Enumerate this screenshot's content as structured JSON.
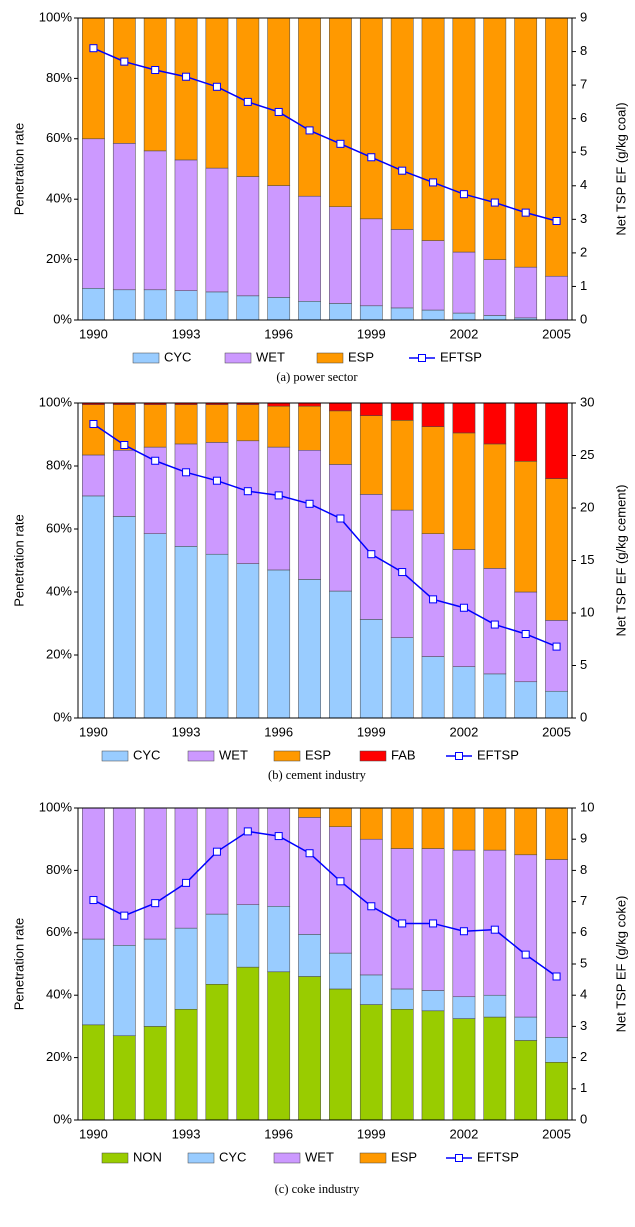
{
  "chart_data": [
    {
      "type": "bar",
      "stacked": true,
      "caption": "(a) power sector",
      "y_label": "Penetration rate",
      "y2_label": "Net TSP EF (g/kg coal)",
      "categories": [
        "1990",
        null,
        null,
        "1993",
        null,
        null,
        "1996",
        null,
        null,
        "1999",
        null,
        null,
        "2002",
        null,
        null,
        "2005"
      ],
      "ylim": [
        0,
        100
      ],
      "yticks": [
        {
          "value": 0,
          "label": "0%"
        },
        {
          "value": 20,
          "label": "20%"
        },
        {
          "value": 40,
          "label": "40%"
        },
        {
          "value": 60,
          "label": "60%"
        },
        {
          "value": 80,
          "label": "80%"
        },
        {
          "value": 100,
          "label": "100%"
        }
      ],
      "y2lim": [
        0,
        9
      ],
      "y2ticks": [
        0,
        1,
        2,
        3,
        4,
        5,
        6,
        7,
        8,
        9
      ],
      "legend": "bottom",
      "series": [
        {
          "name": "CYC",
          "color": "#99ccff",
          "values": [
            10.5,
            10,
            10,
            9.7,
            9.3,
            8,
            7.5,
            6.2,
            5.5,
            4.7,
            4,
            3.3,
            2.3,
            1.5,
            0.7,
            0
          ]
        },
        {
          "name": "WET",
          "color": "#cc99ff",
          "values": [
            49.5,
            48.5,
            46,
            43.3,
            41,
            39.5,
            37,
            34.8,
            32,
            28.8,
            26,
            23,
            20.2,
            18.5,
            16.8,
            14.5
          ]
        },
        {
          "name": "ESP",
          "color": "#ff9900",
          "values": [
            40,
            41.5,
            44,
            47,
            49.7,
            52.5,
            55.5,
            59,
            62.5,
            66.5,
            70,
            73.7,
            77.5,
            80,
            82.5,
            85.5
          ]
        },
        {
          "name": "EFTSP",
          "type": "line",
          "axis": "y2",
          "color": "#0000ff",
          "values": [
            8.1,
            7.7,
            7.45,
            7.25,
            6.95,
            6.5,
            6.2,
            5.65,
            5.25,
            4.85,
            4.45,
            4.1,
            3.75,
            3.5,
            3.2,
            2.95
          ]
        }
      ]
    },
    {
      "type": "bar",
      "stacked": true,
      "caption": "(b) cement industry",
      "y_label": "Penetration rate",
      "y2_label": "Net TSP EF (g/kg cement)",
      "categories": [
        "1990",
        null,
        null,
        "1993",
        null,
        null,
        "1996",
        null,
        null,
        "1999",
        null,
        null,
        "2002",
        null,
        null,
        "2005"
      ],
      "ylim": [
        0,
        100
      ],
      "yticks": [
        {
          "value": 0,
          "label": "0%"
        },
        {
          "value": 20,
          "label": "20%"
        },
        {
          "value": 40,
          "label": "40%"
        },
        {
          "value": 60,
          "label": "60%"
        },
        {
          "value": 80,
          "label": "80%"
        },
        {
          "value": 100,
          "label": "100%"
        }
      ],
      "y2lim": [
        0,
        30
      ],
      "y2ticks": [
        0,
        5,
        10,
        15,
        20,
        25,
        30
      ],
      "legend": "bottom",
      "series": [
        {
          "name": "CYC",
          "color": "#99ccff",
          "values": [
            70.5,
            64,
            58.5,
            54.5,
            52,
            49,
            47,
            44,
            40.3,
            31.3,
            25.5,
            19.5,
            16.3,
            14,
            11.5,
            8.5
          ]
        },
        {
          "name": "WET",
          "color": "#cc99ff",
          "values": [
            13,
            21,
            27.5,
            32.5,
            35.5,
            39,
            39,
            41,
            40.2,
            39.7,
            40.5,
            39,
            37.2,
            33.5,
            28.5,
            22.5
          ]
        },
        {
          "name": "ESP",
          "color": "#ff9900",
          "values": [
            16,
            14.5,
            13.5,
            12.5,
            12,
            11.5,
            13,
            14,
            17,
            25,
            28.5,
            34,
            37,
            39.5,
            41.5,
            45
          ]
        },
        {
          "name": "FAB",
          "color": "#ff0000",
          "values": [
            0.5,
            0.5,
            0.5,
            0.5,
            0.5,
            0.5,
            1,
            1,
            2.5,
            4,
            5.5,
            7.5,
            9.5,
            13,
            18.5,
            24
          ]
        },
        {
          "name": "EFTSP",
          "type": "line",
          "axis": "y2",
          "color": "#0000ff",
          "values": [
            28,
            26,
            24.5,
            23.4,
            22.6,
            21.6,
            21.2,
            20.4,
            19,
            15.6,
            13.9,
            11.3,
            10.5,
            8.9,
            8,
            6.8
          ]
        }
      ]
    },
    {
      "type": "bar",
      "stacked": true,
      "caption": "(c) coke industry",
      "y_label": "Penetration rate",
      "y2_label": "Net TSP EF (g/kg coke)",
      "categories": [
        "1990",
        null,
        null,
        "1993",
        null,
        null,
        "1996",
        null,
        null,
        "1999",
        null,
        null,
        "2002",
        null,
        null,
        "2005"
      ],
      "ylim": [
        0,
        100
      ],
      "yticks": [
        {
          "value": 0,
          "label": "0%"
        },
        {
          "value": 20,
          "label": "20%"
        },
        {
          "value": 40,
          "label": "40%"
        },
        {
          "value": 60,
          "label": "60%"
        },
        {
          "value": 80,
          "label": "80%"
        },
        {
          "value": 100,
          "label": "100%"
        }
      ],
      "y2lim": [
        0,
        10
      ],
      "y2ticks": [
        0,
        1,
        2,
        3,
        4,
        5,
        6,
        7,
        8,
        9,
        10
      ],
      "legend": "bottom",
      "series": [
        {
          "name": "NON",
          "color": "#99cc00",
          "values": [
            30.5,
            27,
            30,
            35.5,
            43.5,
            49,
            47.5,
            46,
            42,
            37,
            35.5,
            35,
            32.5,
            33,
            25.5,
            18.5
          ]
        },
        {
          "name": "CYC",
          "color": "#99ccff",
          "values": [
            27.5,
            29,
            28,
            26,
            22.5,
            20,
            21,
            13.5,
            11.5,
            9.5,
            6.5,
            6.5,
            7,
            7,
            7.5,
            8
          ]
        },
        {
          "name": "WET",
          "color": "#cc99ff",
          "values": [
            42,
            44,
            42,
            38.5,
            34,
            31,
            31.5,
            37.5,
            40.5,
            43.5,
            45,
            45.5,
            47,
            46.5,
            52,
            57
          ]
        },
        {
          "name": "ESP",
          "color": "#ff9900",
          "values": [
            0,
            0,
            0,
            0,
            0,
            0,
            0,
            3,
            6,
            10,
            13,
            13,
            13.5,
            13.5,
            15,
            16.5
          ]
        },
        {
          "name": "EFTSP",
          "type": "line",
          "axis": "y2",
          "color": "#0000ff",
          "values": [
            7.05,
            6.55,
            6.95,
            7.6,
            8.6,
            9.25,
            9.1,
            8.55,
            7.65,
            6.85,
            6.3,
            6.3,
            6.05,
            6.1,
            5.3,
            4.6
          ]
        }
      ]
    }
  ]
}
